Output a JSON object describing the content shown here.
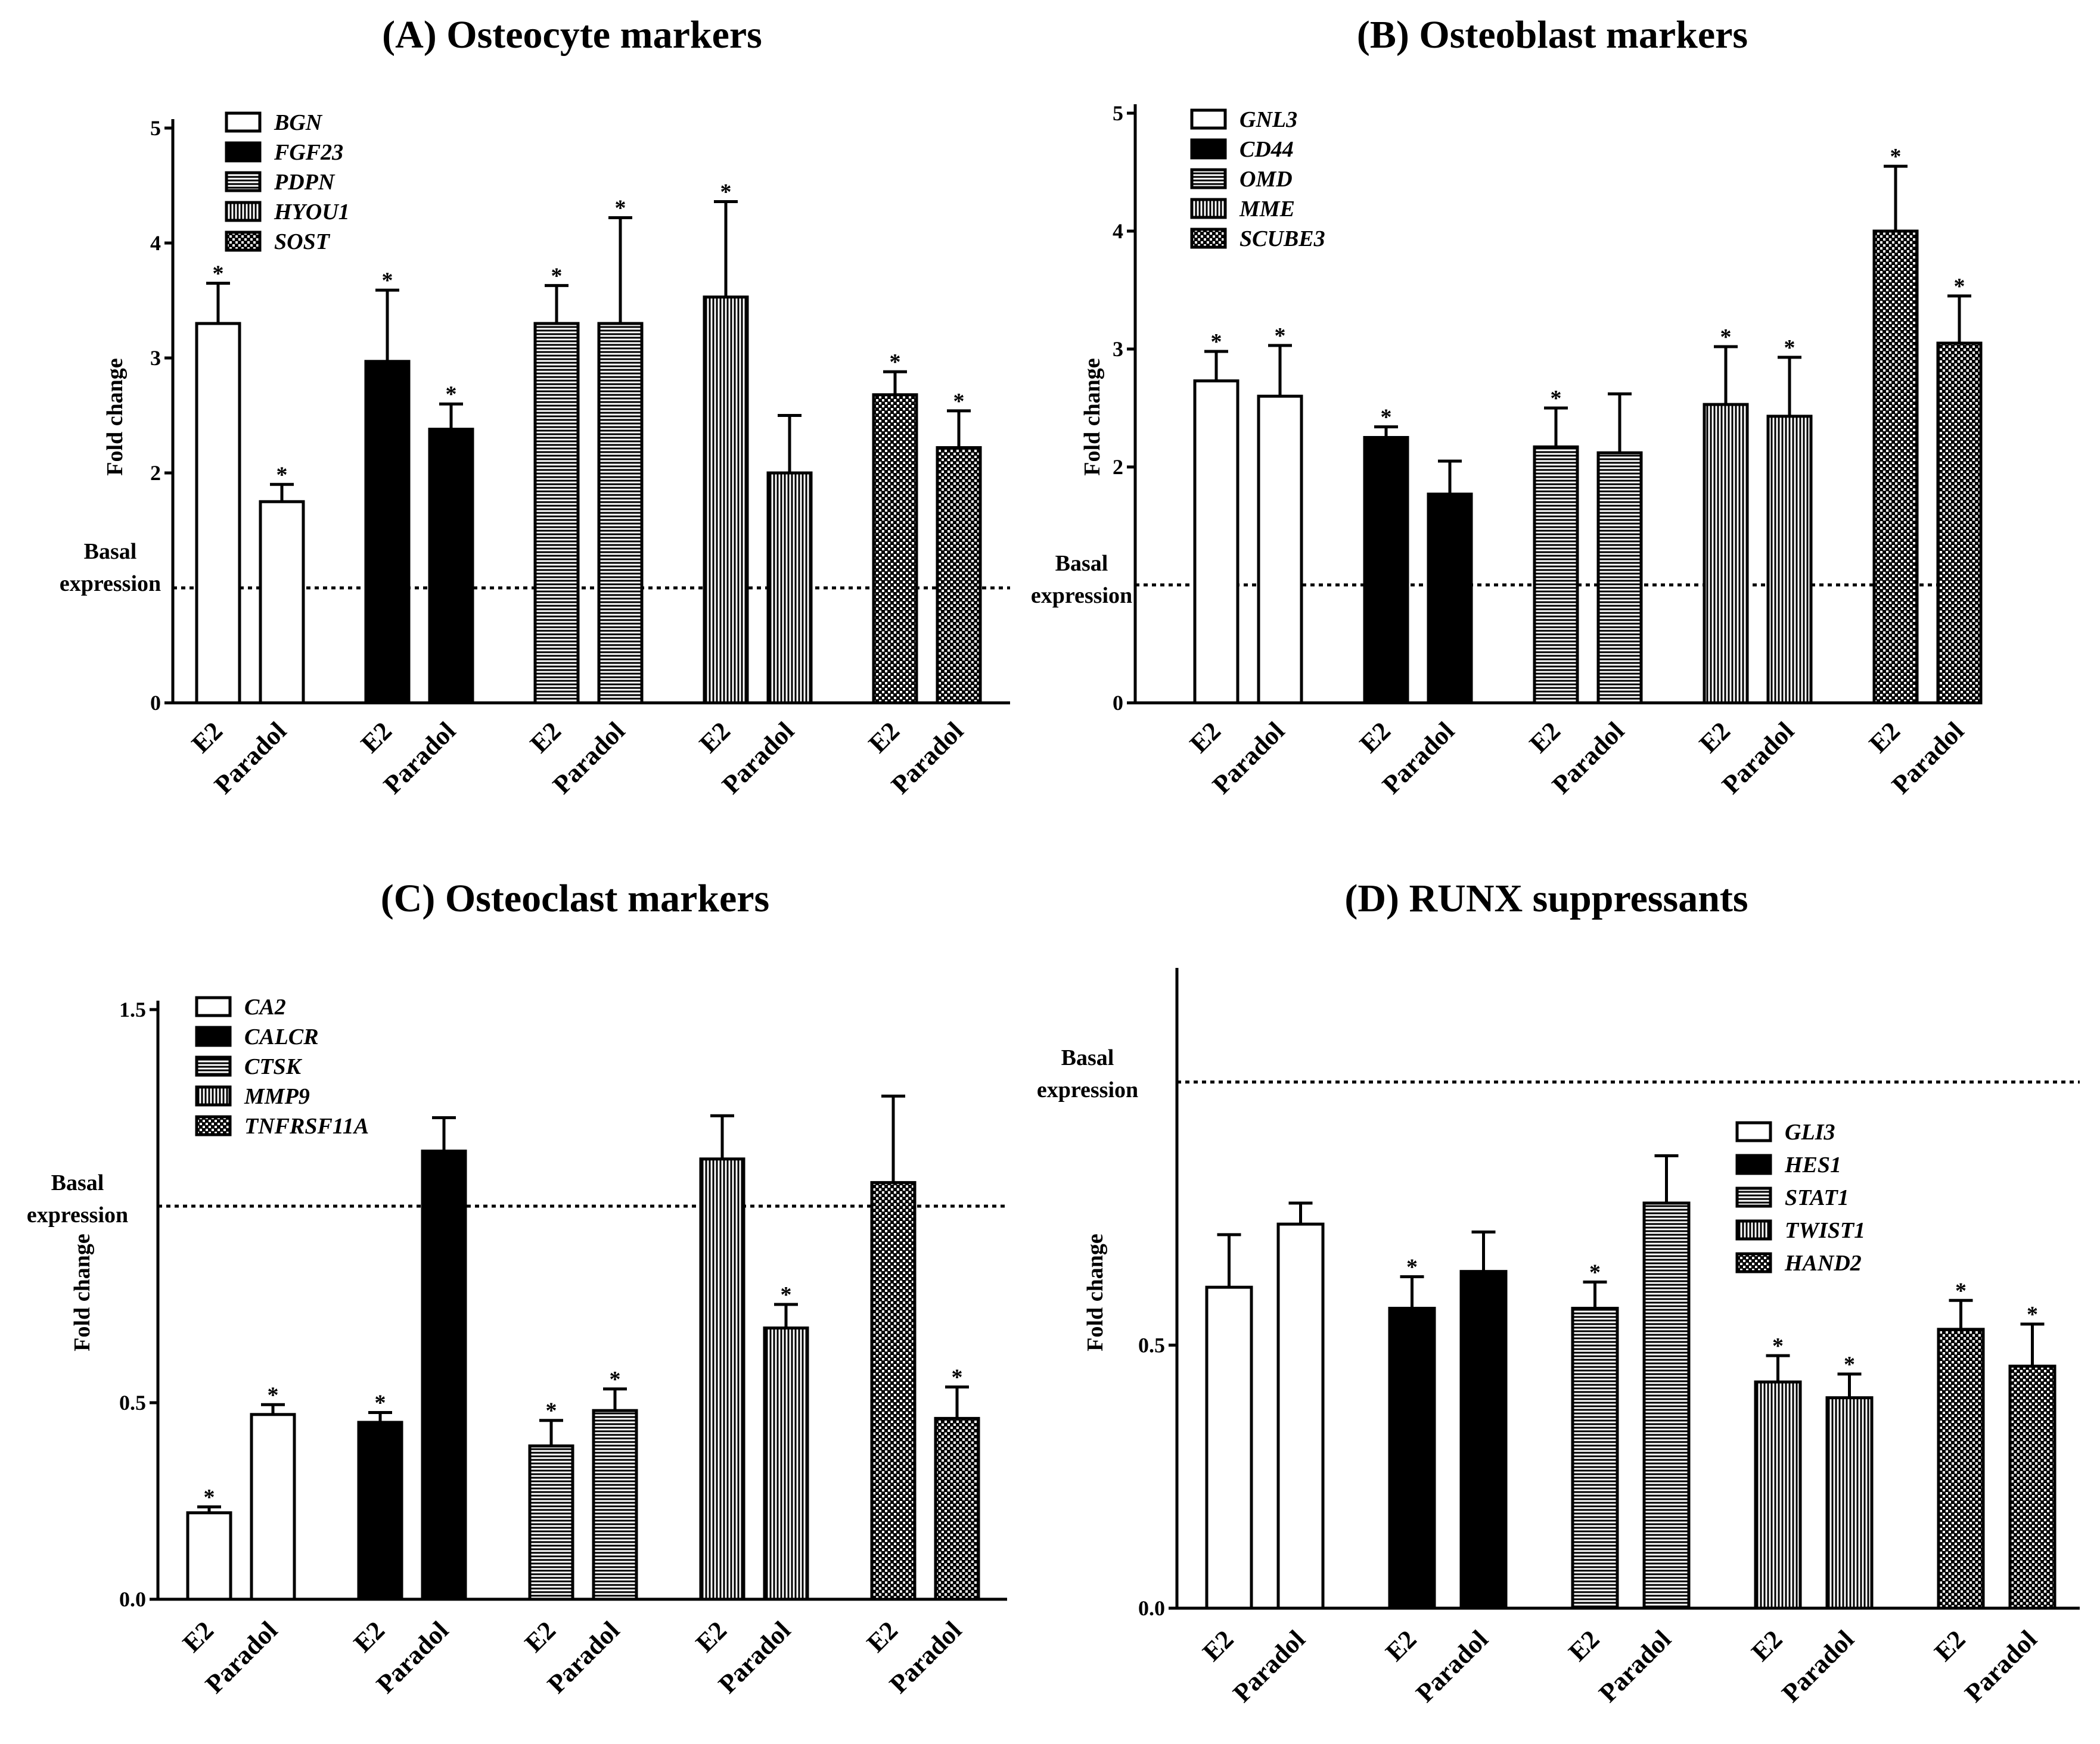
{
  "figure": {
    "background": "#ffffff",
    "ink": "#000000"
  },
  "patterns": [
    "open",
    "solid",
    "hlines",
    "vlines",
    "dots"
  ],
  "chart_data": [
    {
      "type": "bar",
      "title": "(A) Osteocyte markers",
      "ylabel": "Fold change",
      "ylim": [
        0,
        5
      ],
      "yticks": [
        "0",
        "2",
        "3",
        "4",
        "5"
      ],
      "ytick_values": [
        0,
        2,
        3,
        4,
        5
      ],
      "basal_label": [
        "Basal",
        "expression"
      ],
      "basal_value": 1,
      "categories": [
        "E2",
        "Paradol"
      ],
      "series": [
        {
          "name": "BGN",
          "values": [
            3.3,
            1.75
          ],
          "errors": [
            0.35,
            0.15
          ],
          "significant": [
            true,
            true
          ]
        },
        {
          "name": "FGF23",
          "values": [
            2.97,
            2.38
          ],
          "errors": [
            0.62,
            0.22
          ],
          "significant": [
            true,
            true
          ]
        },
        {
          "name": "PDPN",
          "values": [
            3.3,
            3.3
          ],
          "errors": [
            0.33,
            0.92
          ],
          "significant": [
            true,
            true
          ]
        },
        {
          "name": "HYOU1",
          "values": [
            3.53,
            2.0
          ],
          "errors": [
            0.83,
            0.5
          ],
          "significant": [
            true,
            false
          ]
        },
        {
          "name": "SOST",
          "values": [
            2.68,
            2.22
          ],
          "errors": [
            0.2,
            0.32
          ],
          "significant": [
            true,
            true
          ]
        }
      ]
    },
    {
      "type": "bar",
      "title": "(B) Osteoblast markers",
      "ylabel": "Fold change",
      "ylim": [
        0,
        5
      ],
      "yticks": [
        "0",
        "2",
        "3",
        "4",
        "5"
      ],
      "ytick_values": [
        0,
        2,
        3,
        4,
        5
      ],
      "basal_label": [
        "Basal",
        "expression"
      ],
      "basal_value": 1,
      "categories": [
        "E2",
        "Paradol"
      ],
      "series": [
        {
          "name": "GNL3",
          "values": [
            2.73,
            2.6
          ],
          "errors": [
            0.25,
            0.43
          ],
          "significant": [
            true,
            true
          ]
        },
        {
          "name": "CD44",
          "values": [
            2.25,
            1.77
          ],
          "errors": [
            0.09,
            0.28
          ],
          "significant": [
            true,
            false
          ]
        },
        {
          "name": "OMD",
          "values": [
            2.17,
            2.12
          ],
          "errors": [
            0.33,
            0.5
          ],
          "significant": [
            true,
            false
          ]
        },
        {
          "name": "MME",
          "values": [
            2.53,
            2.43
          ],
          "errors": [
            0.49,
            0.5
          ],
          "significant": [
            true,
            true
          ]
        },
        {
          "name": "SCUBE3",
          "values": [
            4.0,
            3.05
          ],
          "errors": [
            0.55,
            0.4
          ],
          "significant": [
            true,
            true
          ]
        }
      ]
    },
    {
      "type": "bar",
      "title": "(C) Osteoclast markers",
      "ylabel": "Fold change",
      "ylim": [
        0,
        1.5
      ],
      "yticks": [
        "0.0",
        "0.5",
        "1.5"
      ],
      "ytick_values": [
        0,
        0.5,
        1.5
      ],
      "basal_label": [
        "Basal",
        "expression"
      ],
      "basal_value": 1,
      "categories": [
        "E2",
        "Paradol"
      ],
      "series": [
        {
          "name": "CA2",
          "values": [
            0.22,
            0.47
          ],
          "errors": [
            0.015,
            0.025
          ],
          "significant": [
            true,
            true
          ]
        },
        {
          "name": "CALCR",
          "values": [
            0.45,
            1.14
          ],
          "errors": [
            0.025,
            0.085
          ],
          "significant": [
            true,
            false
          ]
        },
        {
          "name": "CTSK",
          "values": [
            0.39,
            0.48
          ],
          "errors": [
            0.065,
            0.055
          ],
          "significant": [
            true,
            true
          ]
        },
        {
          "name": "MMP9",
          "values": [
            1.12,
            0.69
          ],
          "errors": [
            0.11,
            0.06
          ],
          "significant": [
            false,
            true
          ]
        },
        {
          "name": "TNFRSF11A",
          "values": [
            1.06,
            0.46
          ],
          "errors": [
            0.22,
            0.08
          ],
          "significant": [
            false,
            true
          ]
        }
      ]
    },
    {
      "type": "bar",
      "title": "(D) RUNX suppressants",
      "ylabel": "Fold change",
      "ylim": [
        0,
        1.2
      ],
      "yticks": [
        "0.0",
        "0.5"
      ],
      "ytick_values": [
        0,
        0.5
      ],
      "basal_label": [
        "Basal",
        "expression"
      ],
      "basal_value": 1,
      "categories": [
        "E2",
        "Paradol"
      ],
      "series": [
        {
          "name": "GLI3",
          "values": [
            0.61,
            0.73
          ],
          "errors": [
            0.1,
            0.04
          ],
          "significant": [
            false,
            false
          ]
        },
        {
          "name": "HES1",
          "values": [
            0.57,
            0.64
          ],
          "errors": [
            0.06,
            0.075
          ],
          "significant": [
            true,
            false
          ]
        },
        {
          "name": "STAT1",
          "values": [
            0.57,
            0.77
          ],
          "errors": [
            0.05,
            0.09
          ],
          "significant": [
            true,
            false
          ]
        },
        {
          "name": "TWIST1",
          "values": [
            0.43,
            0.4
          ],
          "errors": [
            0.05,
            0.045
          ],
          "significant": [
            true,
            true
          ]
        },
        {
          "name": "HAND2",
          "values": [
            0.53,
            0.46
          ],
          "errors": [
            0.055,
            0.08
          ],
          "significant": [
            true,
            true
          ]
        }
      ]
    }
  ]
}
